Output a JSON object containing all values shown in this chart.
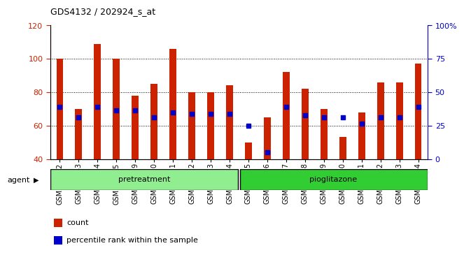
{
  "title": "GDS4132 / 202924_s_at",
  "categories": [
    "GSM201542",
    "GSM201543",
    "GSM201544",
    "GSM201545",
    "GSM201829",
    "GSM201830",
    "GSM201831",
    "GSM201832",
    "GSM201833",
    "GSM201834",
    "GSM201835",
    "GSM201836",
    "GSM201837",
    "GSM201838",
    "GSM201839",
    "GSM201840",
    "GSM201841",
    "GSM201842",
    "GSM201843",
    "GSM201844"
  ],
  "count_values": [
    100,
    70,
    109,
    100,
    78,
    85,
    106,
    80,
    80,
    84,
    50,
    65,
    92,
    82,
    70,
    53,
    68,
    86,
    86,
    97
  ],
  "percentile_values": [
    71,
    65,
    71,
    69,
    69,
    65,
    68,
    67,
    67,
    67,
    60,
    44,
    71,
    66,
    65,
    65,
    61,
    65,
    65,
    71
  ],
  "bar_color": "#cc2200",
  "dot_color": "#0000cc",
  "ylim_left": [
    40,
    120
  ],
  "ylim_right": [
    0,
    100
  ],
  "yticks_left": [
    40,
    60,
    80,
    100,
    120
  ],
  "yticks_right": [
    0,
    25,
    50,
    75,
    100
  ],
  "ytick_labels_right": [
    "0",
    "25",
    "50",
    "75",
    "100%"
  ],
  "grid_values": [
    60,
    80,
    100
  ],
  "pretreatment_count": 10,
  "pioglitazone_count": 10,
  "pretreatment_label": "pretreatment",
  "pioglitazone_label": "pioglitazone",
  "agent_label": "agent",
  "legend_count": "count",
  "legend_pct": "percentile rank within the sample",
  "bg_color": "#ffffff",
  "pretreatment_color": "#90ee90",
  "pioglitazone_color": "#32cd32",
  "bar_width": 0.35,
  "plot_bg": "#ffffff"
}
